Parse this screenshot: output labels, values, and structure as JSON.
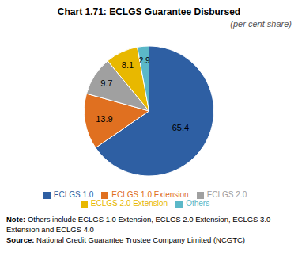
{
  "chart_data": {
    "type": "pie",
    "title": "Chart 1.71: ECLGS Guarantee Disbursed",
    "subtitle": "(per cent share)",
    "categories": [
      "ECLGS 1.0",
      "ECLGS 1.0 Extension",
      "ECLGS 2.0",
      "ECLGS 2.0 Extension",
      "Others"
    ],
    "values": [
      65.4,
      13.9,
      9.7,
      8.1,
      2.9
    ],
    "colors": [
      "#2e5fa3",
      "#e07020",
      "#a0a0a0",
      "#e8b800",
      "#5bb8c8"
    ],
    "data_labels": true,
    "legend": "bottom",
    "annotations": [
      "Note: Others include ECLGS 1.0 Extension, ECLGS 2.0 Extension, ECLGS 3.0 Extension and ECLGS 4.0",
      "Source: National Credit Guarantee Trustee Company Limited (NCGTC)"
    ]
  }
}
